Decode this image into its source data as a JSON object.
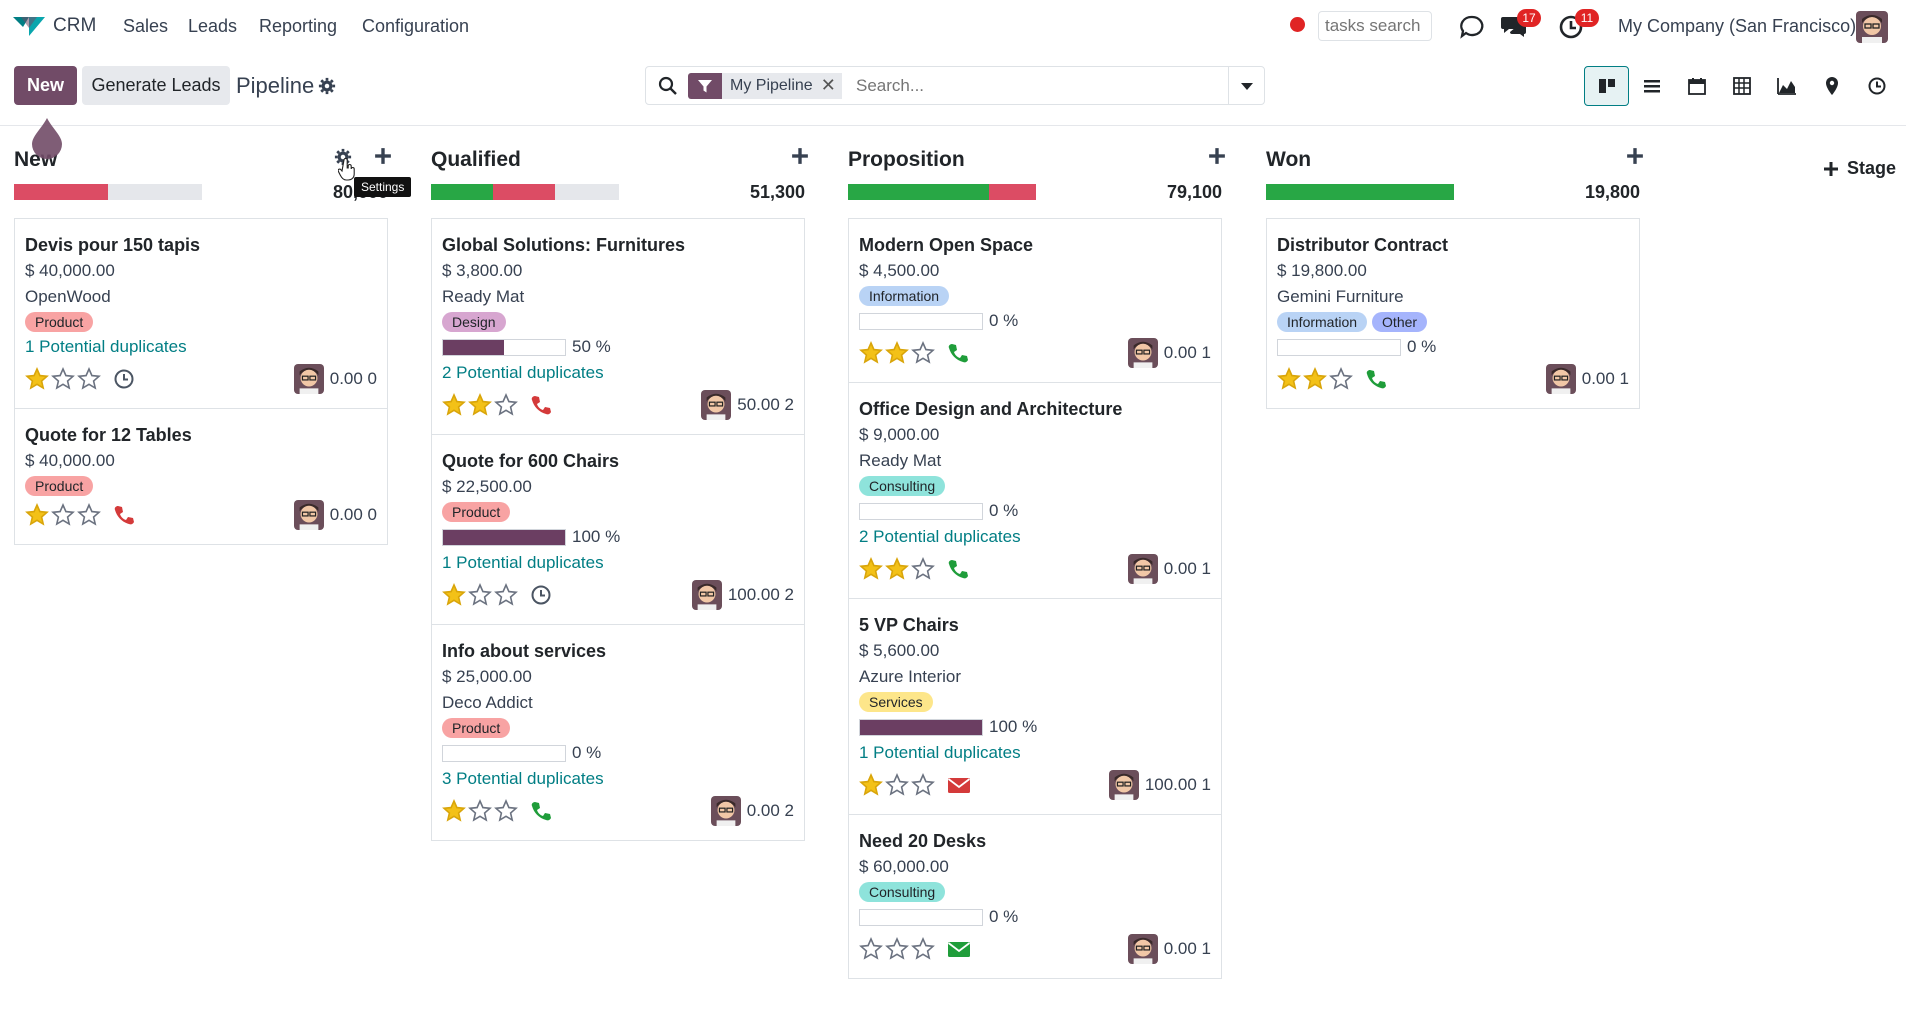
{
  "nav": {
    "app_name": "CRM",
    "menu": [
      "Sales",
      "Leads",
      "Reporting",
      "Configuration"
    ],
    "tasks_search_placeholder": "tasks search",
    "messages_count": "17",
    "activities_count": "11",
    "company": "My Company (San Francisco)"
  },
  "control": {
    "new_label": "New",
    "generate_label": "Generate Leads",
    "breadcrumb": "Pipeline",
    "facet_label": "My Pipeline",
    "search_placeholder": "Search..."
  },
  "tooltip": "Settings",
  "stage_add_label": "Stage",
  "colors": {
    "brand": "#714b67",
    "teal": "#017e84",
    "green": "#28a745",
    "red": "#dc4c64",
    "grey": "#e5e7eb"
  },
  "columns": [
    {
      "title": "New",
      "total": "80,000",
      "bar": [
        {
          "color": "#dc4c64",
          "pct": 50
        },
        {
          "color": "#e5e7eb",
          "pct": 50
        }
      ],
      "cards": [
        {
          "title": "Devis pour 150 tapis",
          "amount": "$ 40,000.00",
          "company": "OpenWood",
          "tags": [
            {
              "label": "Product",
              "color": "#f8a3a3"
            }
          ],
          "dup": "1 Potential duplicates",
          "stars": 1,
          "activity": "clock-icon",
          "foot": "0.00 0"
        },
        {
          "title": "Quote for 12 Tables",
          "amount": "$ 40,000.00",
          "company": "",
          "tags": [
            {
              "label": "Product",
              "color": "#f8a3a3"
            }
          ],
          "dup": "",
          "stars": 1,
          "activity": "phone-red-icon",
          "foot": "0.00 0"
        }
      ]
    },
    {
      "title": "Qualified",
      "total": "51,300",
      "bar": [
        {
          "color": "#28a745",
          "pct": 33
        },
        {
          "color": "#dc4c64",
          "pct": 33
        },
        {
          "color": "#e5e7eb",
          "pct": 34
        }
      ],
      "cards": [
        {
          "title": "Global Solutions: Furnitures",
          "amount": "$ 3,800.00",
          "company": "Ready Mat",
          "tags": [
            {
              "label": "Design",
              "color": "#d7a6d0"
            }
          ],
          "prob": 50,
          "prob_text": "50 %",
          "dup": "2 Potential duplicates",
          "stars": 2,
          "activity": "phone-red-icon",
          "foot": "50.00 2"
        },
        {
          "title": "Quote for 600 Chairs",
          "amount": "$ 22,500.00",
          "company": "",
          "tags": [
            {
              "label": "Product",
              "color": "#f8a3a3"
            }
          ],
          "prob": 100,
          "prob_text": "100 %",
          "dup": "1 Potential duplicates",
          "stars": 1,
          "activity": "clock-icon",
          "foot": "100.00 2"
        },
        {
          "title": "Info about services",
          "amount": "$ 25,000.00",
          "company": "Deco Addict",
          "tags": [
            {
              "label": "Product",
              "color": "#f8a3a3"
            }
          ],
          "prob": 0,
          "prob_text": "0 %",
          "dup": "3 Potential duplicates",
          "stars": 1,
          "activity": "phone-green-icon",
          "foot": "0.00 2"
        }
      ]
    },
    {
      "title": "Proposition",
      "total": "79,100",
      "bar": [
        {
          "color": "#28a745",
          "pct": 75
        },
        {
          "color": "#dc4c64",
          "pct": 25
        }
      ],
      "cards": [
        {
          "title": "Modern Open Space",
          "amount": "$ 4,500.00",
          "company": "",
          "tags": [
            {
              "label": "Information",
              "color": "#b9d3f5"
            }
          ],
          "prob": 0,
          "prob_text": "0 %",
          "dup": "",
          "stars": 2,
          "activity": "phone-green-icon",
          "foot": "0.00 1"
        },
        {
          "title": "Office Design and Architecture",
          "amount": "$ 9,000.00",
          "company": "Ready Mat",
          "tags": [
            {
              "label": "Consulting",
              "color": "#8ee3db"
            }
          ],
          "prob": 0,
          "prob_text": "0 %",
          "dup": "2 Potential duplicates",
          "stars": 2,
          "activity": "phone-green-icon",
          "foot": "0.00 1"
        },
        {
          "title": "5 VP Chairs",
          "amount": "$ 5,600.00",
          "company": "Azure Interior",
          "tags": [
            {
              "label": "Services",
              "color": "#fde68a"
            }
          ],
          "prob": 100,
          "prob_text": "100 %",
          "dup": "1 Potential duplicates",
          "stars": 1,
          "activity": "envelope-red-icon",
          "foot": "100.00 1"
        },
        {
          "title": "Need 20 Desks",
          "amount": "$ 60,000.00",
          "company": "",
          "tags": [
            {
              "label": "Consulting",
              "color": "#8ee3db"
            }
          ],
          "prob": 0,
          "prob_text": "0 %",
          "dup": "",
          "stars": 0,
          "activity": "envelope-green-icon",
          "foot": "0.00 1"
        }
      ]
    },
    {
      "title": "Won",
      "total": "19,800",
      "bar": [
        {
          "color": "#28a745",
          "pct": 100
        }
      ],
      "cards": [
        {
          "title": "Distributor Contract",
          "amount": "$ 19,800.00",
          "company": "Gemini Furniture",
          "tags": [
            {
              "label": "Information",
              "color": "#b9d3f5"
            },
            {
              "label": "Other",
              "color": "#a5b4fc"
            }
          ],
          "prob": 0,
          "prob_text": "0 %",
          "dup": "",
          "stars": 2,
          "activity": "phone-green-icon",
          "foot": "0.00 1"
        }
      ]
    }
  ]
}
